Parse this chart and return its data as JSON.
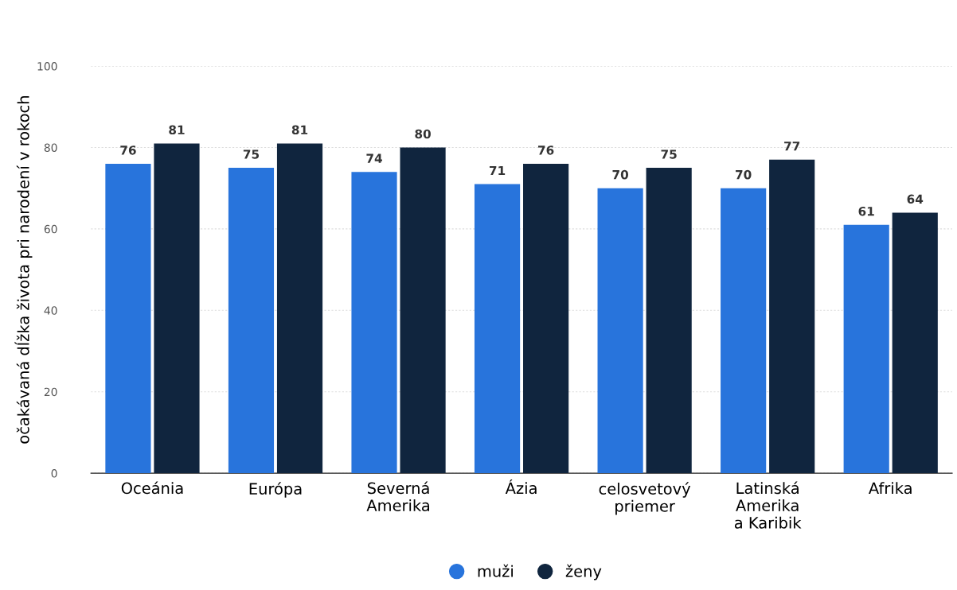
{
  "chart_data": {
    "type": "bar",
    "ylabel": "očakávaná dĺžka života pri narodení v rokoch",
    "categories": [
      "Oceánia",
      "Európa",
      "Severná\nAmerika",
      "Ázia",
      "celosvetový\npriemer",
      "Latinská\nAmerika\na Karibik",
      "Afrika"
    ],
    "series": [
      {
        "name": "muži",
        "color": "#2874dc",
        "values": [
          76,
          75,
          74,
          71,
          70,
          70,
          61
        ]
      },
      {
        "name": "ženy",
        "color": "#10253e",
        "values": [
          81,
          81,
          80,
          76,
          75,
          77,
          64
        ]
      }
    ],
    "ylim": [
      0,
      100
    ],
    "yticks": [
      0,
      20,
      40,
      60,
      80,
      100
    ],
    "grid": "y",
    "legend": "bottom",
    "data_labels": true
  }
}
